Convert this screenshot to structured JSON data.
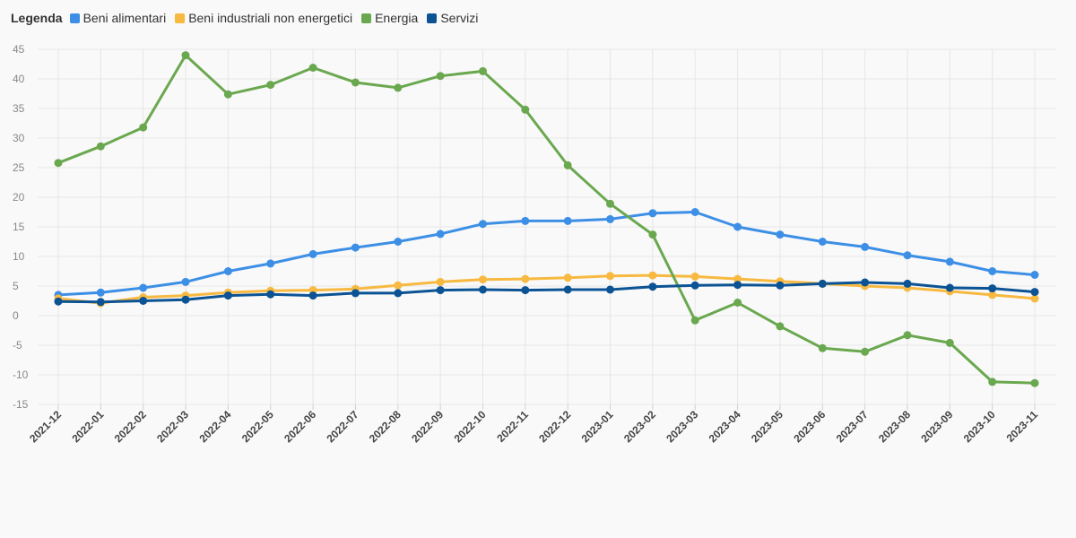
{
  "legend": {
    "title": "Legenda"
  },
  "chart_data": {
    "type": "line",
    "title": "",
    "xlabel": "",
    "ylabel": "",
    "ylim": [
      -15,
      45
    ],
    "yticks": [
      45,
      40,
      35,
      30,
      25,
      20,
      15,
      10,
      5,
      0,
      -5,
      -10,
      -15
    ],
    "grid": true,
    "legend_position": "top-left",
    "categories": [
      "2021-12",
      "2022-01",
      "2022-02",
      "2022-03",
      "2022-04",
      "2022-05",
      "2022-06",
      "2022-07",
      "2022-08",
      "2022-09",
      "2022-10",
      "2022-11",
      "2022-12",
      "2023-01",
      "2023-02",
      "2023-03",
      "2023-04",
      "2023-05",
      "2023-06",
      "2023-07",
      "2023-08",
      "2023-09",
      "2023-10",
      "2023-11"
    ],
    "series": [
      {
        "name": "Beni alimentari",
        "color": "#3d8fe6",
        "values": [
          3.5,
          3.9,
          4.7,
          5.7,
          7.5,
          8.8,
          10.4,
          11.5,
          12.5,
          13.8,
          15.5,
          16.0,
          16.0,
          16.3,
          17.3,
          17.5,
          15.0,
          13.7,
          12.5,
          11.6,
          10.2,
          9.1,
          7.5,
          6.9
        ]
      },
      {
        "name": "Beni industriali non energetici",
        "color": "#f7b940",
        "values": [
          2.9,
          2.1,
          3.1,
          3.4,
          3.9,
          4.2,
          4.3,
          4.5,
          5.1,
          5.7,
          6.1,
          6.2,
          6.4,
          6.7,
          6.8,
          6.6,
          6.2,
          5.8,
          5.4,
          5.0,
          4.7,
          4.1,
          3.5,
          2.9
        ]
      },
      {
        "name": "Energia",
        "color": "#6aa84f",
        "values": [
          25.8,
          28.6,
          31.8,
          44.0,
          37.4,
          39.0,
          41.9,
          39.4,
          38.5,
          40.5,
          41.3,
          34.8,
          25.4,
          18.9,
          13.7,
          -0.8,
          2.2,
          -1.8,
          -5.5,
          -6.1,
          -3.3,
          -4.6,
          -11.2,
          -11.4
        ]
      },
      {
        "name": "Servizi",
        "color": "#0b5394",
        "values": [
          2.4,
          2.3,
          2.5,
          2.7,
          3.4,
          3.6,
          3.4,
          3.8,
          3.8,
          4.3,
          4.4,
          4.3,
          4.4,
          4.4,
          4.9,
          5.1,
          5.2,
          5.1,
          5.4,
          5.6,
          5.4,
          4.7,
          4.6,
          4.0
        ]
      }
    ]
  }
}
